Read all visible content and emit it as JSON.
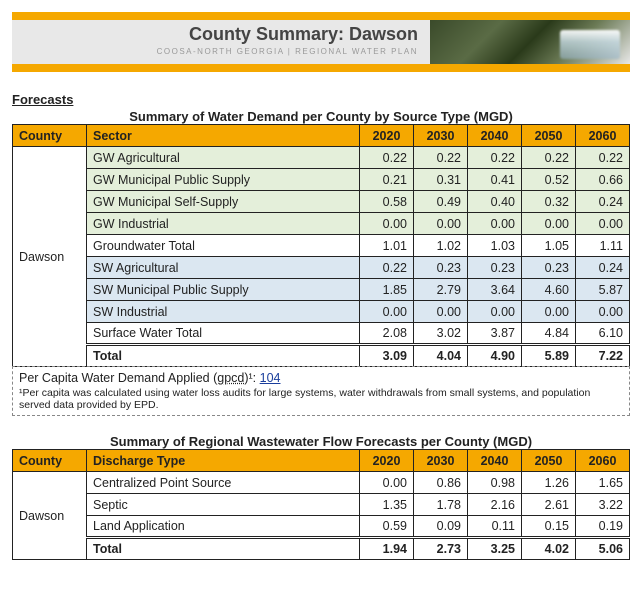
{
  "header": {
    "title": "County  Summary:  Dawson",
    "subtitle": "COOSA-NORTH GEORGIA | REGIONAL WATER PLAN"
  },
  "forecasts_label": "Forecasts",
  "demand": {
    "title": "Summary of Water Demand per County by Source Type (MGD)",
    "col_county": "County",
    "col_sector": "Sector",
    "years": [
      "2020",
      "2030",
      "2040",
      "2050",
      "2060"
    ],
    "county": "Dawson",
    "rows": [
      {
        "label": "GW Agricultural",
        "cls": "gw",
        "vals": [
          "0.22",
          "0.22",
          "0.22",
          "0.22",
          "0.22"
        ]
      },
      {
        "label": "GW Municipal Public Supply",
        "cls": "gw",
        "vals": [
          "0.21",
          "0.31",
          "0.41",
          "0.52",
          "0.66"
        ]
      },
      {
        "label": "GW Municipal Self-Supply",
        "cls": "gw",
        "vals": [
          "0.58",
          "0.49",
          "0.40",
          "0.32",
          "0.24"
        ]
      },
      {
        "label": "GW Industrial",
        "cls": "gw",
        "vals": [
          "0.00",
          "0.00",
          "0.00",
          "0.00",
          "0.00"
        ]
      },
      {
        "label": "Groundwater Total",
        "cls": "",
        "vals": [
          "1.01",
          "1.02",
          "1.03",
          "1.05",
          "1.11"
        ]
      },
      {
        "label": "SW Agricultural",
        "cls": "sw",
        "vals": [
          "0.22",
          "0.23",
          "0.23",
          "0.23",
          "0.24"
        ]
      },
      {
        "label": "SW Municipal Public Supply",
        "cls": "sw",
        "vals": [
          "1.85",
          "2.79",
          "3.64",
          "4.60",
          "5.87"
        ]
      },
      {
        "label": "SW Industrial",
        "cls": "sw",
        "vals": [
          "0.00",
          "0.00",
          "0.00",
          "0.00",
          "0.00"
        ]
      },
      {
        "label": "Surface Water Total",
        "cls": "",
        "vals": [
          "2.08",
          "3.02",
          "3.87",
          "4.84",
          "6.10"
        ]
      }
    ],
    "total": {
      "label": "Total",
      "vals": [
        "3.09",
        "4.04",
        "4.90",
        "5.89",
        "7.22"
      ]
    },
    "footnote": {
      "pc_label": "Per Capita Water Demand Applied (",
      "pc_unit": "gpcd",
      "pc_sup": ")¹: ",
      "pc_value": "104",
      "note": "¹Per capita was calculated using water loss audits for large systems, water withdrawals from small systems, and population served data provided by EPD."
    }
  },
  "wastewater": {
    "title": "Summary of Regional Wastewater Flow Forecasts per County (MGD)",
    "col_county": "County",
    "col_sector": "Discharge Type",
    "years": [
      "2020",
      "2030",
      "2040",
      "2050",
      "2060"
    ],
    "county": "Dawson",
    "rows": [
      {
        "label": "Centralized Point Source",
        "vals": [
          "0.00",
          "0.86",
          "0.98",
          "1.26",
          "1.65"
        ]
      },
      {
        "label": "Septic",
        "vals": [
          "1.35",
          "1.78",
          "2.16",
          "2.61",
          "3.22"
        ]
      },
      {
        "label": "Land Application",
        "vals": [
          "0.59",
          "0.09",
          "0.11",
          "0.15",
          "0.19"
        ]
      }
    ],
    "total": {
      "label": "Total",
      "vals": [
        "1.94",
        "2.73",
        "3.25",
        "4.02",
        "5.06"
      ]
    }
  }
}
